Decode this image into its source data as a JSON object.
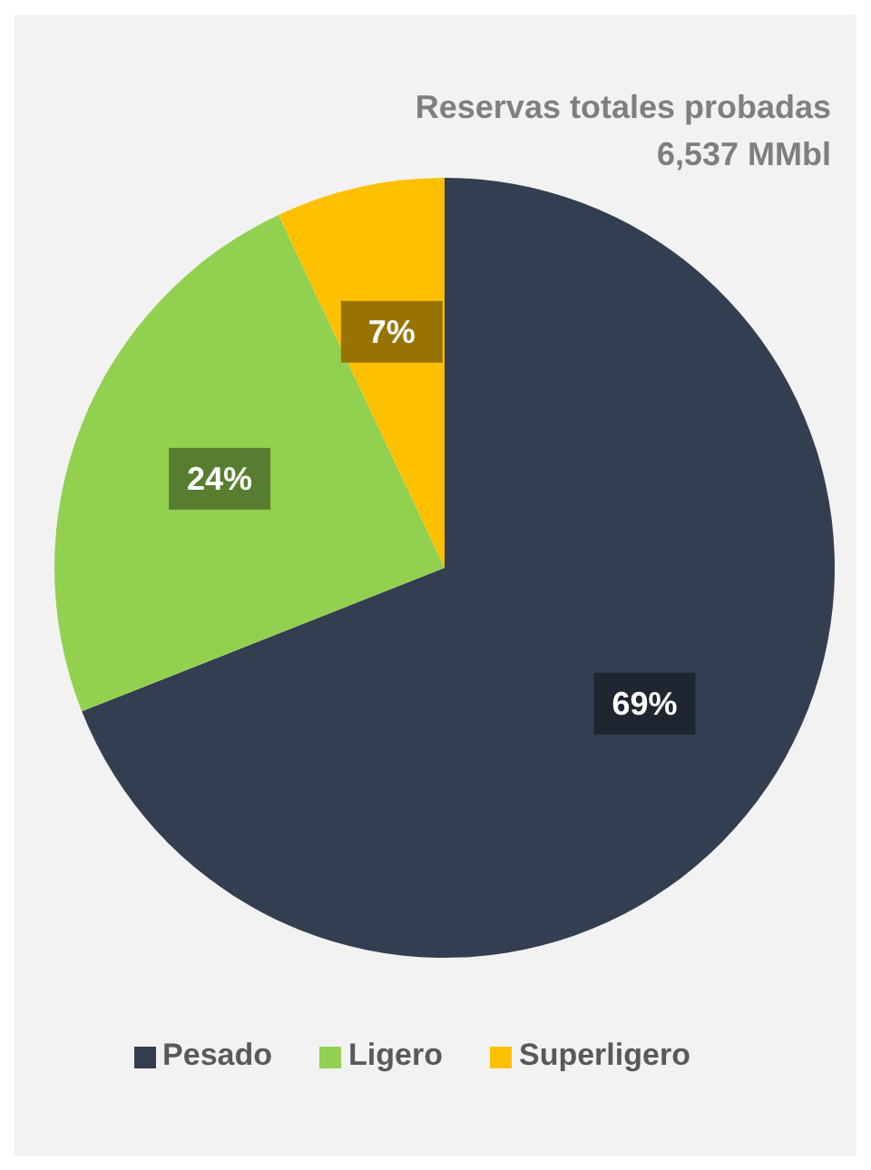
{
  "chart_data": {
    "type": "pie",
    "title": "Reservas totales probadas",
    "subtitle": "6,537 MMbl",
    "categories": [
      "Pesado",
      "Ligero",
      "Superligero"
    ],
    "values": [
      69,
      24,
      7
    ],
    "colors": [
      "#333f50",
      "#92d050",
      "#ffc000"
    ],
    "value_labels": [
      "69%",
      "24%",
      "7%"
    ],
    "legend": "bottom"
  }
}
